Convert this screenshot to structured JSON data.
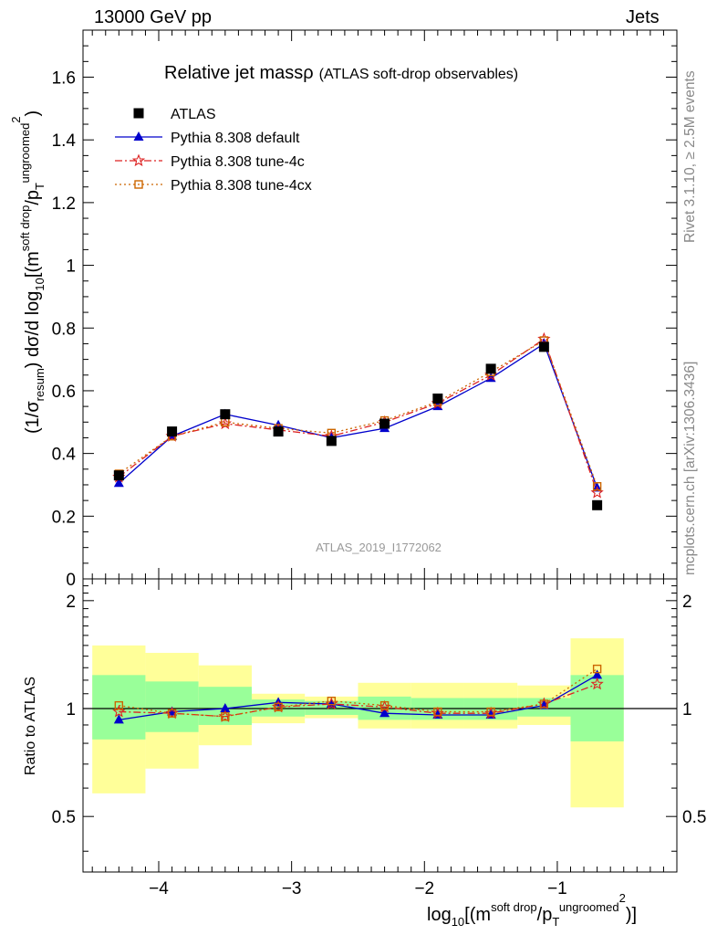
{
  "header": {
    "left": "13000 GeV pp",
    "right": "Jets"
  },
  "side_labels": {
    "rivet": "Rivet 3.1.10, ≥ 2.5M events",
    "mcplots": "mcplots.cern.ch [arXiv:1306.3436]"
  },
  "chart_data": {
    "type": "line",
    "title": "Relative jet massρ",
    "title_suffix": "(ATLAS soft-drop observables)",
    "watermark": "ATLAS_2019_I1772062",
    "ylabel": "(1/σresum) dσ/d log10[(msoft drop/pTungroomed)2]",
    "xlabel": "log10[(msoft drop/pTungroomed)2]",
    "ratio_ylabel": "Ratio to ATLAS",
    "xlim": [
      -4.57,
      -0.1
    ],
    "ylim_main": [
      0,
      1.75
    ],
    "ylim_ratio": [
      0.35,
      2.3
    ],
    "ratio_scale": "log",
    "x_ticks": [
      -4,
      -3,
      -2,
      -1
    ],
    "x_tick_labels": [
      "−4",
      "−3",
      "−2",
      "−1"
    ],
    "y_ticks_main": [
      0,
      0.2,
      0.4,
      0.6,
      0.8,
      1,
      1.2,
      1.4,
      1.6
    ],
    "y_tick_labels_main": [
      "0",
      "0.2",
      "0.4",
      "0.6",
      "0.8",
      "1",
      "1.2",
      "1.4",
      "1.6"
    ],
    "y_ticks_ratio": [
      0.5,
      1,
      2
    ],
    "y_tick_labels_ratio": [
      "0.5",
      "1",
      "2"
    ],
    "bin_edges": [
      -4.5,
      -4.1,
      -3.7,
      -3.3,
      -2.9,
      -2.5,
      -2.1,
      -1.7,
      -1.3,
      -0.9,
      -0.5
    ],
    "x": [
      -4.3,
      -3.9,
      -3.5,
      -3.1,
      -2.7,
      -2.3,
      -1.9,
      -1.5,
      -1.1,
      -0.7
    ],
    "band_inner": [
      [
        0.82,
        1.24
      ],
      [
        0.86,
        1.19
      ],
      [
        0.9,
        1.15
      ],
      [
        0.95,
        1.06
      ],
      [
        0.96,
        1.05
      ],
      [
        0.93,
        1.08
      ],
      [
        0.93,
        1.07
      ],
      [
        0.93,
        1.07
      ],
      [
        0.95,
        1.07
      ],
      [
        0.81,
        1.24
      ]
    ],
    "band_outer": [
      [
        0.58,
        1.5
      ],
      [
        0.68,
        1.43
      ],
      [
        0.79,
        1.32
      ],
      [
        0.91,
        1.1
      ],
      [
        0.94,
        1.08
      ],
      [
        0.88,
        1.18
      ],
      [
        0.88,
        1.18
      ],
      [
        0.88,
        1.18
      ],
      [
        0.9,
        1.16
      ],
      [
        0.53,
        1.57
      ]
    ],
    "series": [
      {
        "name": "ATLAS",
        "color": "#000000",
        "marker": "square",
        "values": [
          0.33,
          0.47,
          0.525,
          0.47,
          0.44,
          0.495,
          0.575,
          0.67,
          0.74,
          0.235
        ]
      },
      {
        "name": "Pythia 8.308 default",
        "color": "#0000cc",
        "marker": "triangle",
        "dash": "",
        "values": [
          0.305,
          0.455,
          0.525,
          0.49,
          0.45,
          0.48,
          0.55,
          0.64,
          0.75,
          0.29
        ],
        "ratio": [
          0.93,
          0.98,
          1.0,
          1.04,
          1.03,
          0.97,
          0.96,
          0.96,
          1.02,
          1.24
        ]
      },
      {
        "name": "Pythia 8.308 tune-4c",
        "color": "#dd2222",
        "marker": "star",
        "dash": "8,3,2,3",
        "values": [
          0.325,
          0.455,
          0.495,
          0.475,
          0.455,
          0.5,
          0.56,
          0.65,
          0.765,
          0.275
        ],
        "ratio": [
          0.98,
          0.97,
          0.95,
          1.01,
          1.03,
          1.01,
          0.97,
          0.97,
          1.03,
          1.17
        ]
      },
      {
        "name": "Pythia 8.308 tune-4cx",
        "color": "#cc6600",
        "marker": "open-square",
        "dash": "2,3",
        "values": [
          0.335,
          0.455,
          0.5,
          0.48,
          0.465,
          0.505,
          0.565,
          0.66,
          0.76,
          0.295
        ],
        "ratio": [
          1.02,
          0.97,
          0.95,
          1.01,
          1.05,
          1.02,
          0.98,
          0.98,
          1.03,
          1.29
        ]
      }
    ],
    "colors": {
      "band_inner": "#99ff99",
      "band_outer": "#ffff99"
    },
    "legend_position": "top-left",
    "grid": false
  }
}
